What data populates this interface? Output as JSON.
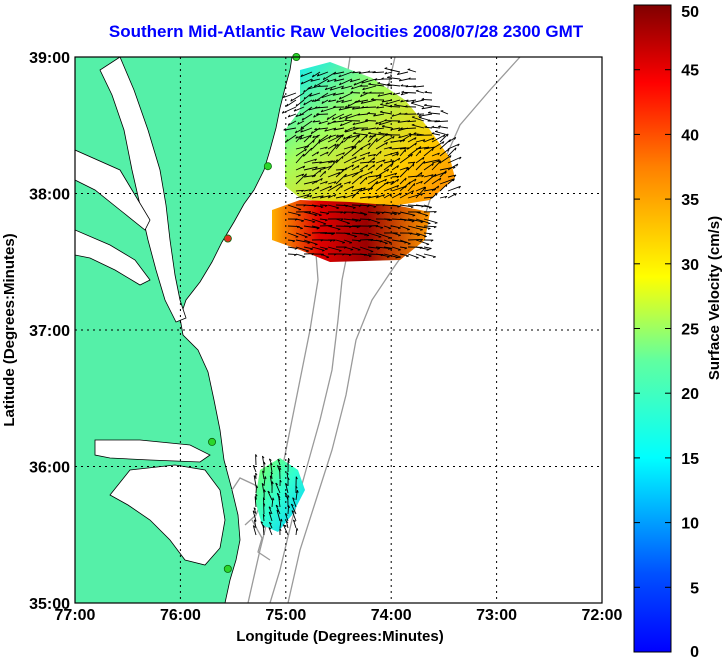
{
  "title": "Southern Mid-Atlantic Raw Velocities 2008/07/28 2300 GMT",
  "x_axis": {
    "label": "Longitude (Degrees:Minutes)",
    "ticks": [
      "77:00",
      "76:00",
      "75:00",
      "74:00",
      "73:00",
      "72:00"
    ],
    "range": [
      -77,
      -72
    ]
  },
  "y_axis": {
    "label": "Latitude (Degrees:Minutes)",
    "ticks": [
      "39:00",
      "38:00",
      "37:00",
      "36:00",
      "35:00"
    ],
    "range": [
      35,
      39
    ]
  },
  "colorbar": {
    "label": "Surface Velocity (cm/s)",
    "ticks": [
      "50",
      "45",
      "40",
      "35",
      "30",
      "25",
      "20",
      "15",
      "10",
      "5",
      "0"
    ],
    "range": [
      0,
      50
    ]
  },
  "colors": {
    "land": "#55f0a8",
    "title": "#0000ff",
    "bathymetry": "#9a9a9a",
    "grid": "#000000",
    "station": "#2bd62b",
    "station_alt": "#e03020"
  },
  "stations": [
    {
      "lon": -74.9,
      "lat": 39.0,
      "status": "active"
    },
    {
      "lon": -75.17,
      "lat": 38.2,
      "status": "active"
    },
    {
      "lon": -75.55,
      "lat": 37.67,
      "status": "alt"
    },
    {
      "lon": -75.7,
      "lat": 36.18,
      "status": "active"
    },
    {
      "lon": -75.55,
      "lat": 35.25,
      "status": "active"
    }
  ],
  "grid": "dotted"
}
